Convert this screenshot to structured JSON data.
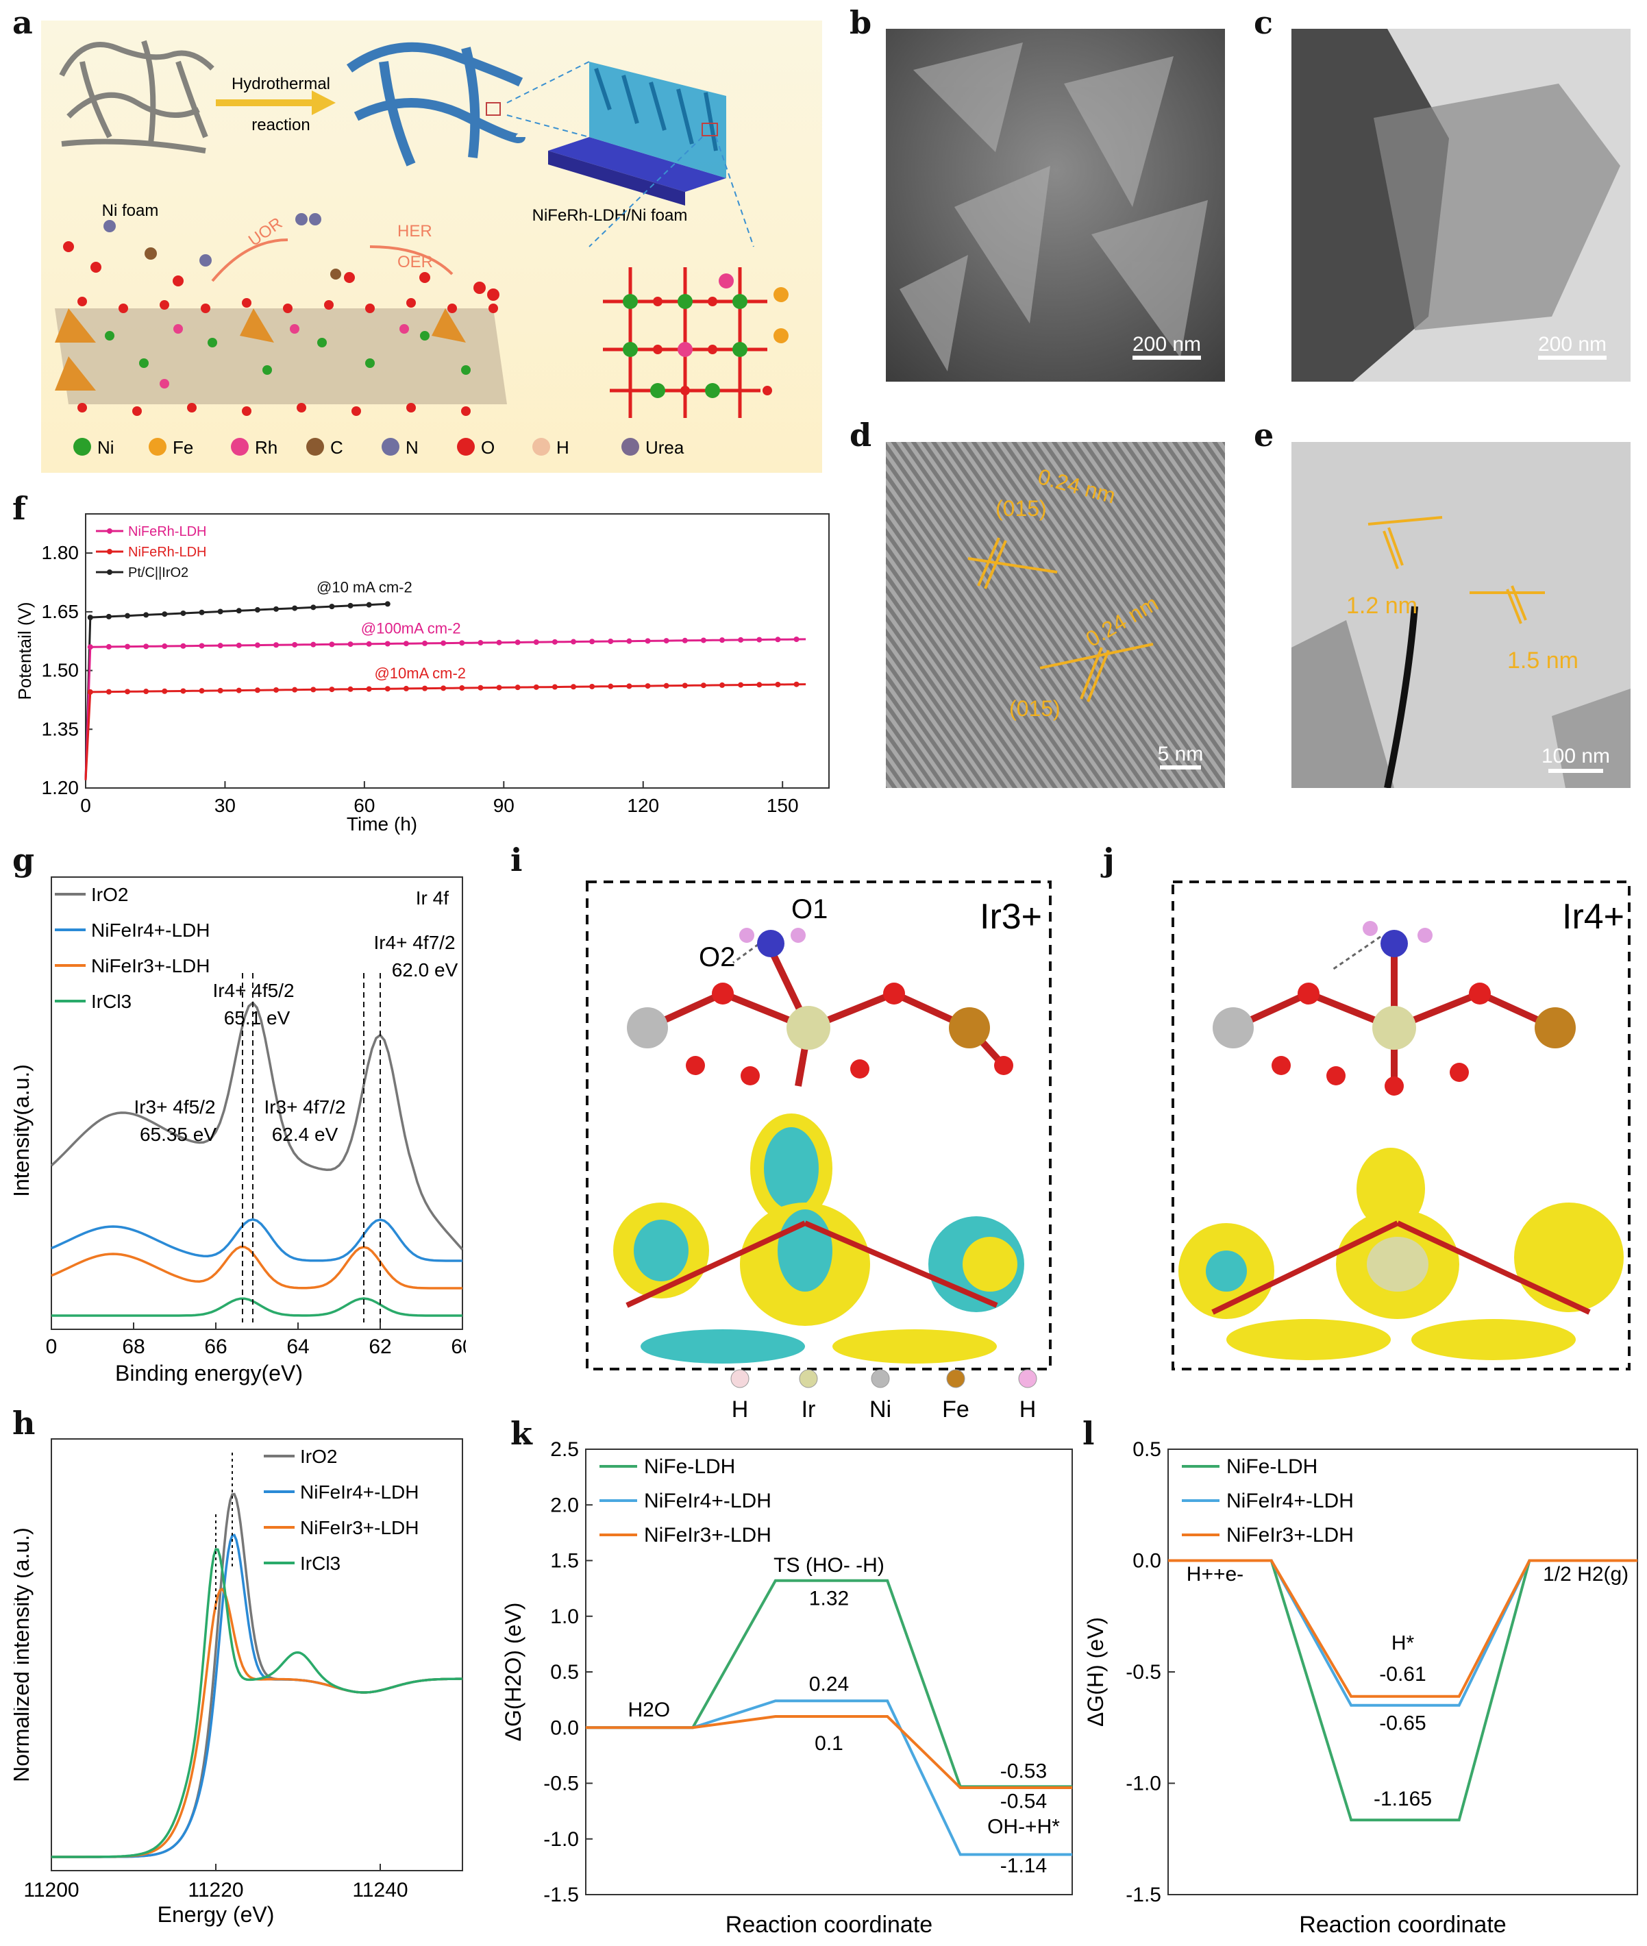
{
  "panel_letters": [
    "a",
    "b",
    "c",
    "d",
    "e",
    "f",
    "g",
    "h",
    "i",
    "j",
    "k",
    "l"
  ],
  "schematic": {
    "arrow_top": "Hydrothermal",
    "arrow_bottom": "reaction",
    "ni_foam": "Ni foam",
    "product": "NiFeRh-LDH/Ni foam",
    "uor": "UOR",
    "her": "HER",
    "oer": "OER",
    "legend": [
      "Ni",
      "Fe",
      "Rh",
      "C",
      "N",
      "O",
      "H",
      "Urea"
    ],
    "legend_colors": [
      "#2aa02a",
      "#f0a020",
      "#e8408a",
      "#8a5a30",
      "#7070a0",
      "#e02020",
      "#f0c0a0",
      "#7a6a90"
    ]
  },
  "micrographs": {
    "b_scale": "200 nm",
    "c_scale": "200 nm",
    "d_scale": "5 nm",
    "d_labels": [
      "0.24 nm",
      "(015)",
      "0.24 nm",
      "(015)"
    ],
    "e_scale": "100 nm",
    "e_labels": [
      "1.2 nm",
      "1.5 nm"
    ]
  },
  "panel_i": {
    "title": "Ir3+",
    "o1": "O1",
    "o2": "O2"
  },
  "panel_j": {
    "title": "Ir4+"
  },
  "atom_legend": [
    "H",
    "Ir",
    "Ni",
    "Fe",
    "H"
  ],
  "atom_legend_colors": [
    "#f4d8dc",
    "#d8d8a0",
    "#b8b8b8",
    "#c08020",
    "#f0b0e0"
  ],
  "chart_data": [
    {
      "id": "f",
      "type": "line",
      "xlabel": "Time (h)",
      "ylabel": "Potentail (V)",
      "xlim": [
        0,
        160
      ],
      "ylim": [
        1.2,
        1.9
      ],
      "xticks": [
        0,
        30,
        60,
        90,
        120,
        150
      ],
      "yticks": [
        1.2,
        1.35,
        1.5,
        1.65,
        1.8
      ],
      "legend": [
        "NiFeRh-LDH",
        "NiFeRh-LDH",
        "Pt/C||IrO2"
      ],
      "annotations": [
        "@10 mA cm-2",
        "@100mA cm-2",
        "@10mA cm-2"
      ],
      "series": [
        {
          "name": "Pt/C||IrO2",
          "color": "#222222",
          "x_end": 65,
          "y_start": 1.635,
          "y_end": 1.67
        },
        {
          "name": "NiFeRh-LDH",
          "color": "#e0208a",
          "x_end": 155,
          "y_start": 1.56,
          "y_end": 1.58
        },
        {
          "name": "NiFeRh-LDH",
          "color": "#e02020",
          "x_end": 155,
          "y_start": 1.445,
          "y_end": 1.465
        }
      ]
    },
    {
      "id": "g",
      "type": "line",
      "title": "Ir 4f",
      "xlabel": "Binding energy(eV)",
      "ylabel": "Intensity(a.u.)",
      "xlim": [
        70,
        60
      ],
      "xticks": [
        "0",
        "68",
        "66",
        "64",
        "62",
        "60"
      ],
      "legend": [
        "IrO2",
        "NiFeIr4+-LDH",
        "NiFeIr3+-LDH",
        "IrCl3"
      ],
      "peak_labels": [
        "Ir4+ 4f7/2",
        "62.0 eV",
        "Ir4+ 4f5/2",
        "65.1 eV",
        "Ir3+ 4f5/2",
        "65.35 eV",
        "Ir3+ 4f7/2",
        "62.4 eV"
      ],
      "series": [
        {
          "name": "IrO2",
          "color": "#777777",
          "peaks": [
            65.1,
            62.0
          ]
        },
        {
          "name": "NiFeIr4+-LDH",
          "color": "#2a8ad6",
          "peaks": [
            65.1,
            62.0
          ]
        },
        {
          "name": "NiFeIr3+-LDH",
          "color": "#f07820",
          "peaks": [
            65.35,
            62.4
          ]
        },
        {
          "name": "IrCl3",
          "color": "#2aaa6a",
          "peaks": [
            65.35,
            62.4
          ]
        }
      ]
    },
    {
      "id": "h",
      "type": "line",
      "xlabel": "Energy (eV)",
      "ylabel": "Normalized intensity (a.u.)",
      "xlim": [
        11200,
        11250
      ],
      "xticks": [
        11200,
        11220,
        11240
      ],
      "legend": [
        "IrO2",
        "NiFeIr4+-LDH",
        "NiFeIr3+-LDH",
        "IrCl3"
      ],
      "series": [
        {
          "name": "IrO2",
          "color": "#777777",
          "peak_x": 11222
        },
        {
          "name": "NiFeIr4+-LDH",
          "color": "#2a8ad6",
          "peak_x": 11222
        },
        {
          "name": "NiFeIr3+-LDH",
          "color": "#f07820",
          "peak_x": 11220.5
        },
        {
          "name": "IrCl3",
          "color": "#2aaa6a",
          "peak_x": 11220
        }
      ]
    },
    {
      "id": "k",
      "type": "line",
      "xlabel": "Reaction coordinate",
      "ylabel": "ΔG(H2O) (eV)",
      "ylim": [
        -1.5,
        2.5
      ],
      "yticks": [
        "2.5",
        "2.0",
        "1.5",
        "1.0",
        "0.5",
        "0.0",
        "-0.5",
        "-1.0",
        "-1.5"
      ],
      "legend": [
        "NiFe-LDH",
        "NiFeIr4+-LDH",
        "NiFeIr3+-LDH"
      ],
      "states": [
        "H2O",
        "TS (HO- -H)",
        "OH-+H*"
      ],
      "value_labels": [
        "1.32",
        "0.24",
        "0.1",
        "-0.53",
        "-0.54",
        "-1.14"
      ],
      "series": [
        {
          "name": "NiFe-LDH",
          "color": "#3aa86a",
          "values": [
            0,
            1.32,
            -0.53
          ]
        },
        {
          "name": "NiFeIr4+-LDH",
          "color": "#4aa8e0",
          "values": [
            0,
            0.24,
            -1.14
          ]
        },
        {
          "name": "NiFeIr3+-LDH",
          "color": "#f07820",
          "values": [
            0,
            0.1,
            -0.54
          ]
        }
      ]
    },
    {
      "id": "l",
      "type": "line",
      "xlabel": "Reaction coordinate",
      "ylabel": "ΔG(H) (eV)",
      "ylim": [
        -1.5,
        0.5
      ],
      "yticks": [
        "0.5",
        "0.0",
        "-0.5",
        "-1.0",
        "-1.5"
      ],
      "legend": [
        "NiFe-LDH",
        "NiFeIr4+-LDH",
        "NiFeIr3+-LDH"
      ],
      "states": [
        "H++e-",
        "H*",
        "1/2 H2(g)"
      ],
      "value_labels": [
        "-0.61",
        "-0.65",
        "-1.165"
      ],
      "series": [
        {
          "name": "NiFe-LDH",
          "color": "#3aa86a",
          "values": [
            0,
            -1.165,
            0
          ]
        },
        {
          "name": "NiFeIr4+-LDH",
          "color": "#4aa8e0",
          "values": [
            0,
            -0.65,
            0
          ]
        },
        {
          "name": "NiFeIr3+-LDH",
          "color": "#f07820",
          "values": [
            0,
            -0.61,
            0
          ]
        }
      ]
    }
  ]
}
